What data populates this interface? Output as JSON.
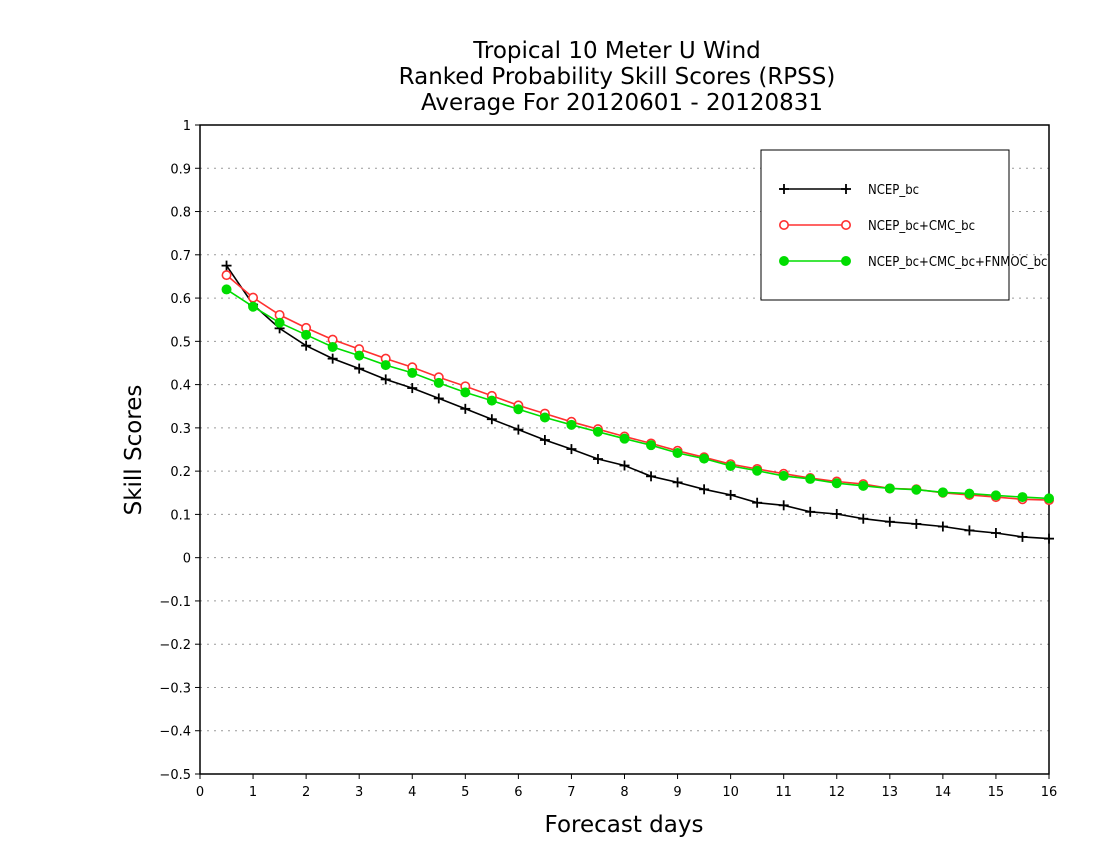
{
  "chart_data": {
    "type": "line",
    "title": [
      "Tropical 10 Meter U Wind",
      "Ranked Probability Skill Scores (RPSS)",
      "Average For 20120601 - 20120831"
    ],
    "xlabel": "Forecast days",
    "ylabel": "Skill Scores",
    "xlim": [
      0,
      16
    ],
    "ylim": [
      -0.5,
      1
    ],
    "x_ticks": [
      0,
      1,
      2,
      3,
      4,
      5,
      6,
      7,
      8,
      9,
      10,
      11,
      12,
      13,
      14,
      15,
      16
    ],
    "y_ticks": [
      -0.5,
      -0.4,
      -0.3,
      -0.2,
      -0.1,
      0,
      0.1,
      0.2,
      0.3,
      0.4,
      0.5,
      0.6,
      0.7,
      0.8,
      0.9,
      1
    ],
    "x_tick_labels": [
      "0",
      "1",
      "2",
      "3",
      "4",
      "5",
      "6",
      "7",
      "8",
      "9",
      "10",
      "11",
      "12",
      "13",
      "14",
      "15",
      "16"
    ],
    "y_tick_labels": [
      "−0.5",
      "−0.4",
      "−0.3",
      "−0.2",
      "−0.1",
      "0",
      "0.1",
      "0.2",
      "0.3",
      "0.4",
      "0.5",
      "0.6",
      "0.7",
      "0.8",
      "0.9",
      "1"
    ],
    "grid": "horizontal dotted",
    "legend_position": "top-right",
    "x": [
      0.5,
      1.0,
      1.5,
      2.0,
      2.5,
      3.0,
      3.5,
      4.0,
      4.5,
      5.0,
      5.5,
      6.0,
      6.5,
      7.0,
      7.5,
      8.0,
      8.5,
      9.0,
      9.5,
      10.0,
      10.5,
      11.0,
      11.5,
      12.0,
      12.5,
      13.0,
      13.5,
      14.0,
      14.5,
      15.0,
      15.5,
      16.0
    ],
    "series": [
      {
        "name": "NCEP_bc",
        "color": "#000000",
        "marker": "plus",
        "values": [
          0.675,
          0.585,
          0.53,
          0.49,
          0.46,
          0.437,
          0.412,
          0.392,
          0.368,
          0.344,
          0.32,
          0.296,
          0.272,
          0.251,
          0.228,
          0.213,
          0.188,
          0.174,
          0.158,
          0.145,
          0.127,
          0.121,
          0.106,
          0.101,
          0.09,
          0.083,
          0.078,
          0.072,
          0.063,
          0.057,
          0.048,
          0.044
        ]
      },
      {
        "name": "NCEP_bc+CMC_bc",
        "color": "#ff3030",
        "marker": "open-circle",
        "values": [
          0.653,
          0.601,
          0.561,
          0.531,
          0.504,
          0.482,
          0.46,
          0.44,
          0.417,
          0.396,
          0.374,
          0.352,
          0.333,
          0.314,
          0.297,
          0.28,
          0.264,
          0.247,
          0.232,
          0.216,
          0.205,
          0.194,
          0.184,
          0.176,
          0.17,
          0.16,
          0.158,
          0.15,
          0.145,
          0.14,
          0.135,
          0.133
        ]
      },
      {
        "name": "NCEP_bc+CMC_bc+FNMOC_bc",
        "color": "#00dd00",
        "marker": "filled-circle",
        "values": [
          0.62,
          0.58,
          0.543,
          0.515,
          0.487,
          0.467,
          0.445,
          0.427,
          0.404,
          0.382,
          0.363,
          0.343,
          0.324,
          0.307,
          0.291,
          0.275,
          0.26,
          0.242,
          0.229,
          0.212,
          0.201,
          0.189,
          0.182,
          0.172,
          0.166,
          0.16,
          0.157,
          0.151,
          0.148,
          0.144,
          0.14,
          0.137
        ]
      }
    ]
  }
}
